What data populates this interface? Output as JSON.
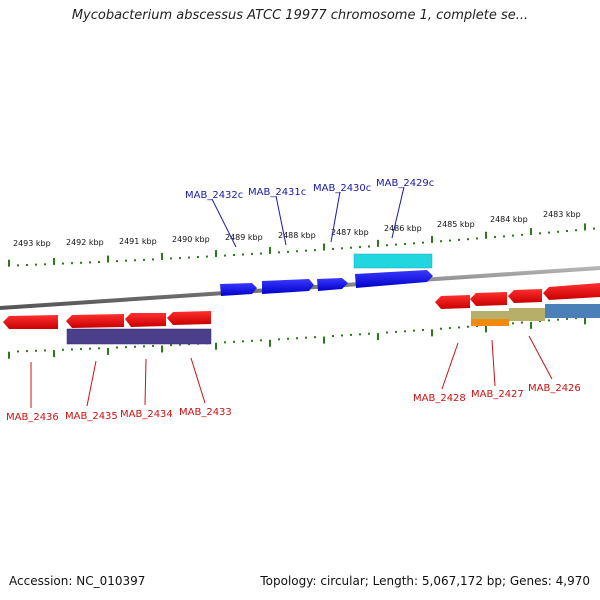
{
  "title": "Mycobacterium abscessus ATCC 19977 chromosome 1, complete se...",
  "footer": {
    "accession": "Accession: NC_010397",
    "summary": "Topology: circular; Length: 5,067,172 bp; Genes: 4,970"
  },
  "colors": {
    "forward_gene": "#0a0ae6",
    "reverse_gene": "#e60a0a",
    "forward_label": "#1a1aa8",
    "reverse_label": "#cc1111",
    "tick": "#2a7a1a",
    "backbone": "#8a8a8a",
    "cyan_feature": "#22d6e0",
    "purple_feature": "#4b3f8c",
    "olive_feature": "#b7ae6a",
    "orange_feature": "#f08a10",
    "steel_feature": "#4a7fb8"
  },
  "tick_labels": [
    "2493 kbp",
    "2492 kbp",
    "2491 kbp",
    "2490 kbp",
    "2489 kbp",
    "2488 kbp",
    "2487 kbp",
    "2486 kbp",
    "2485 kbp",
    "2484 kbp",
    "2483 kbp"
  ],
  "genes_forward": [
    {
      "name": "MAB_2432c"
    },
    {
      "name": "MAB_2431c"
    },
    {
      "name": "MAB_2430c"
    },
    {
      "name": "MAB_2429c"
    }
  ],
  "genes_reverse": [
    {
      "name": "MAB_2436"
    },
    {
      "name": "MAB_2435"
    },
    {
      "name": "MAB_2434"
    },
    {
      "name": "MAB_2433"
    },
    {
      "name": "MAB_2428"
    },
    {
      "name": "MAB_2427"
    },
    {
      "name": "MAB_2426"
    }
  ]
}
